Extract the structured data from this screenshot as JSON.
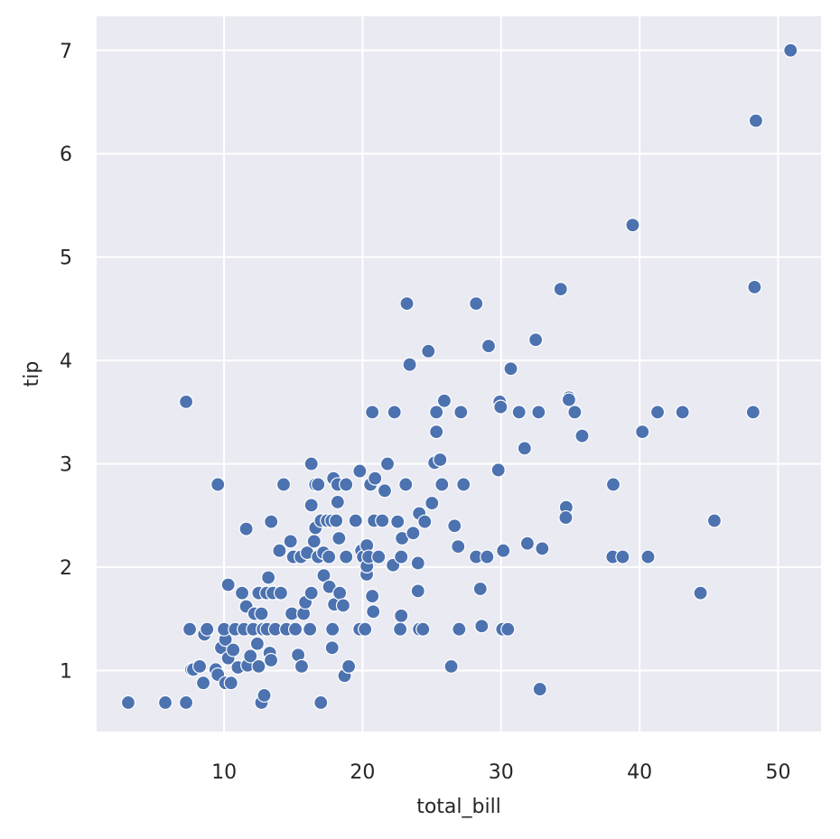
{
  "chart_data": {
    "type": "scatter",
    "x_label": "total_bill",
    "y_label": "tip",
    "color": "#4c72b0",
    "grid": true,
    "xlim": [
      0.8,
      53.1
    ],
    "ylim": [
      0.41,
      7.33
    ],
    "xticks": [
      10,
      20,
      30,
      40,
      50
    ],
    "yticks": [
      1,
      2,
      3,
      4,
      5,
      6,
      7
    ],
    "x": [
      3.08,
      5.76,
      7.26,
      7.26,
      7.52,
      7.65,
      7.78,
      8.24,
      8.58,
      8.77,
      8.5,
      9.55,
      9.4,
      9.55,
      9.8,
      10.1,
      10.0,
      10.1,
      10.3,
      10.3,
      10.5,
      10.66,
      10.8,
      11.0,
      11.3,
      11.44,
      11.6,
      11.6,
      11.7,
      11.9,
      12.1,
      12.2,
      12.4,
      12.5,
      12.5,
      12.7,
      12.7,
      12.81,
      12.9,
      13.07,
      13.1,
      13.2,
      13.3,
      13.39,
      13.4,
      13.52,
      13.7,
      14.0,
      14.1,
      14.3,
      14.5,
      14.8,
      14.89,
      15.0,
      15.15,
      15.35,
      15.55,
      15.6,
      15.74,
      15.87,
      16.0,
      16.2,
      16.3,
      16.3,
      16.3,
      16.5,
      16.6,
      16.6,
      16.79,
      16.79,
      16.99,
      17.0,
      17.18,
      17.2,
      17.44,
      17.57,
      17.6,
      17.77,
      17.8,
      17.83,
      17.9,
      17.96,
      18.09,
      18.2,
      18.2,
      18.3,
      18.35,
      18.6,
      18.7,
      18.81,
      18.81,
      19.0,
      19.5,
      19.8,
      19.79,
      19.92,
      20.05,
      20.18,
      20.3,
      20.31,
      20.31,
      20.44,
      20.57,
      20.7,
      20.7,
      20.77,
      20.83,
      20.9,
      21.16,
      21.42,
      21.6,
      21.8,
      22.2,
      22.3,
      22.53,
      22.79,
      22.85,
      22.79,
      22.72,
      23.2,
      23.12,
      23.4,
      23.65,
      24.0,
      24.0,
      24.09,
      24.09,
      24.36,
      24.49,
      24.75,
      25.01,
      25.2,
      25.33,
      25.33,
      25.6,
      25.73,
      25.9,
      26.4,
      26.64,
      26.9,
      26.97,
      27.1,
      27.29,
      28.2,
      28.2,
      28.5,
      28.6,
      29.1,
      28.99,
      29.8,
      29.9,
      29.97,
      30.1,
      30.16,
      30.49,
      30.7,
      31.3,
      31.7,
      31.9,
      32.5,
      32.71,
      32.8,
      32.97,
      34.3,
      34.7,
      34.67,
      34.9,
      34.9,
      35.32,
      35.85,
      38.1,
      38.06,
      38.78,
      39.5,
      40.2,
      40.61,
      41.3,
      43.1,
      44.4,
      45.4,
      48.2,
      48.3,
      48.4,
      50.9
    ],
    "values": [
      0.69,
      0.69,
      0.69,
      3.6,
      1.4,
      1.01,
      1.01,
      1.04,
      1.35,
      1.4,
      0.88,
      2.8,
      1.01,
      0.96,
      1.22,
      1.3,
      1.4,
      0.88,
      1.83,
      1.12,
      0.88,
      1.2,
      1.4,
      1.03,
      1.75,
      1.4,
      2.37,
      1.62,
      1.05,
      1.14,
      1.4,
      1.55,
      1.26,
      1.04,
      1.75,
      0.69,
      1.55,
      1.4,
      0.76,
      1.75,
      1.4,
      1.9,
      1.17,
      1.1,
      2.44,
      1.75,
      1.4,
      2.16,
      1.75,
      2.8,
      1.4,
      2.25,
      1.55,
      2.1,
      1.4,
      1.15,
      2.1,
      1.04,
      1.55,
      1.66,
      2.14,
      1.4,
      3.0,
      1.75,
      2.6,
      2.25,
      2.8,
      2.38,
      2.8,
      2.1,
      0.69,
      2.45,
      2.14,
      1.92,
      2.45,
      2.1,
      1.81,
      2.45,
      1.22,
      1.4,
      2.86,
      1.64,
      2.45,
      2.8,
      2.63,
      2.28,
      1.75,
      1.63,
      0.95,
      2.8,
      2.1,
      1.04,
      2.45,
      2.93,
      1.4,
      2.16,
      2.1,
      1.4,
      1.93,
      2.01,
      2.21,
      2.1,
      2.8,
      3.5,
      1.72,
      1.57,
      2.45,
      2.86,
      2.1,
      2.45,
      2.74,
      3.0,
      2.02,
      3.5,
      2.44,
      2.1,
      2.28,
      1.53,
      1.4,
      4.55,
      2.8,
      3.96,
      2.33,
      2.04,
      1.77,
      1.4,
      2.52,
      1.4,
      2.44,
      4.09,
      2.62,
      3.01,
      3.5,
      3.31,
      3.04,
      2.8,
      3.61,
      1.04,
      2.4,
      2.2,
      1.4,
      3.5,
      2.8,
      4.55,
      2.1,
      1.79,
      1.43,
      4.14,
      2.1,
      2.94,
      3.6,
      3.55,
      1.4,
      2.16,
      1.4,
      3.92,
      3.5,
      3.15,
      2.23,
      4.2,
      3.5,
      0.82,
      2.18,
      4.69,
      2.58,
      2.48,
      3.64,
      3.62,
      3.5,
      3.27,
      2.8,
      2.1,
      2.1,
      5.31,
      3.31,
      2.1,
      3.5,
      3.5,
      1.75,
      2.45,
      3.5,
      4.71,
      6.32,
      7.0
    ]
  }
}
